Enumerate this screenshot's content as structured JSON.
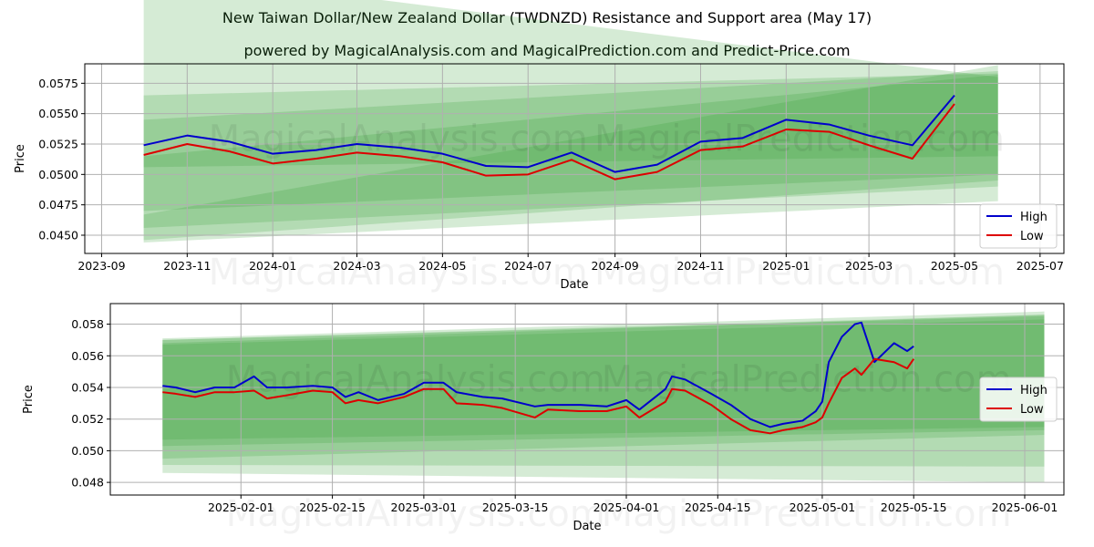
{
  "title": "New Taiwan Dollar/New Zealand Dollar (TWDNZD) Resistance and Support area (May 17)",
  "subtitle": "powered by MagicalAnalysis.com and MagicalPrediction.com and Predict-Price.com",
  "watermarks": [
    "MagicalAnalysis.com",
    "MagicalPrediction.com"
  ],
  "colors": {
    "high": "#0000cc",
    "low": "#dd0000",
    "band": "#2e9c2e",
    "grid": "#b0b0b0"
  },
  "chart_data": [
    {
      "type": "line",
      "xlabel": "Date",
      "ylabel": "Price",
      "grid": true,
      "legend": "bottom-right",
      "x_ticks": [
        "2023-09",
        "2023-11",
        "2024-01",
        "2024-03",
        "2024-05",
        "2024-07",
        "2024-09",
        "2024-11",
        "2025-01",
        "2025-03",
        "2025-05",
        "2025-07"
      ],
      "y_ticks": [
        "0.0450",
        "0.0475",
        "0.0500",
        "0.0525",
        "0.0550",
        "0.0575"
      ],
      "ylim": [
        0.0435,
        0.0591
      ],
      "x": [
        "2023-10",
        "2023-11",
        "2023-12",
        "2024-01",
        "2024-02",
        "2024-03",
        "2024-04",
        "2024-05",
        "2024-06",
        "2024-07",
        "2024-08",
        "2024-09",
        "2024-10",
        "2024-11",
        "2024-12",
        "2025-01",
        "2025-02",
        "2025-03",
        "2025-04",
        "2025-05"
      ],
      "series": [
        {
          "name": "High",
          "values": [
            0.0524,
            0.0532,
            0.0527,
            0.0517,
            0.052,
            0.0525,
            0.0522,
            0.0517,
            0.0507,
            0.0506,
            0.0518,
            0.0502,
            0.0508,
            0.0527,
            0.053,
            0.0545,
            0.0541,
            0.0532,
            0.0524,
            0.0565
          ]
        },
        {
          "name": "Low",
          "values": [
            0.0516,
            0.0525,
            0.0519,
            0.0509,
            0.0513,
            0.0518,
            0.0515,
            0.051,
            0.0499,
            0.05,
            0.0512,
            0.0496,
            0.0502,
            0.052,
            0.0523,
            0.0537,
            0.0535,
            0.0524,
            0.0513,
            0.0558
          ]
        }
      ],
      "support_resistance_bands": [
        {
          "start": [
            0.0506,
            0.0565
          ],
          "end": [
            0.0515,
            0.0583
          ]
        },
        {
          "start": [
            0.047,
            0.0545
          ],
          "end": [
            0.05,
            0.0585
          ]
        },
        {
          "start": [
            0.0456,
            0.0515
          ],
          "end": [
            0.049,
            0.0582
          ]
        },
        {
          "start": [
            0.0444,
            0.0467
          ],
          "end": [
            0.0478,
            0.059
          ]
        },
        {
          "start": [
            0.0446,
            0.0668
          ],
          "end": [
            0.0495,
            0.058
          ]
        }
      ]
    },
    {
      "type": "line",
      "xlabel": "Date",
      "ylabel": "Price",
      "grid": true,
      "legend": "center-right",
      "x_ticks": [
        "2025-02-01",
        "2025-02-15",
        "2025-03-01",
        "2025-03-15",
        "2025-04-01",
        "2025-04-15",
        "2025-05-01",
        "2025-05-15",
        "2025-06-01"
      ],
      "y_ticks": [
        "0.048",
        "0.050",
        "0.052",
        "0.054",
        "0.056",
        "0.058"
      ],
      "ylim": [
        0.0472,
        0.0593
      ],
      "x": [
        "2025-01-20",
        "2025-01-22",
        "2025-01-25",
        "2025-01-28",
        "2025-01-31",
        "2025-02-03",
        "2025-02-05",
        "2025-02-08",
        "2025-02-12",
        "2025-02-15",
        "2025-02-17",
        "2025-02-19",
        "2025-02-22",
        "2025-02-26",
        "2025-03-01",
        "2025-03-04",
        "2025-03-06",
        "2025-03-10",
        "2025-03-13",
        "2025-03-18",
        "2025-03-20",
        "2025-03-25",
        "2025-03-29",
        "2025-04-01",
        "2025-04-03",
        "2025-04-07",
        "2025-04-08",
        "2025-04-10",
        "2025-04-14",
        "2025-04-17",
        "2025-04-20",
        "2025-04-23",
        "2025-04-25",
        "2025-04-28",
        "2025-04-30",
        "2025-05-01",
        "2025-05-02",
        "2025-05-04",
        "2025-05-06",
        "2025-05-07",
        "2025-05-09",
        "2025-05-12",
        "2025-05-14",
        "2025-05-15"
      ],
      "series": [
        {
          "name": "High",
          "values": [
            0.0541,
            0.054,
            0.0537,
            0.054,
            0.054,
            0.0547,
            0.054,
            0.054,
            0.0541,
            0.054,
            0.0534,
            0.0537,
            0.0532,
            0.0536,
            0.0543,
            0.0543,
            0.0537,
            0.0534,
            0.0533,
            0.0528,
            0.0529,
            0.0529,
            0.0528,
            0.0532,
            0.0526,
            0.0539,
            0.0547,
            0.0545,
            0.0536,
            0.0529,
            0.052,
            0.0515,
            0.0517,
            0.0519,
            0.0525,
            0.0531,
            0.0556,
            0.0572,
            0.058,
            0.0581,
            0.0556,
            0.0568,
            0.0563,
            0.0566
          ]
        },
        {
          "name": "Low",
          "values": [
            0.0537,
            0.0536,
            0.0534,
            0.0537,
            0.0537,
            0.0538,
            0.0533,
            0.0535,
            0.0538,
            0.0537,
            0.053,
            0.0532,
            0.053,
            0.0534,
            0.0539,
            0.0539,
            0.053,
            0.0529,
            0.0527,
            0.0521,
            0.0526,
            0.0525,
            0.0525,
            0.0528,
            0.0521,
            0.0531,
            0.0539,
            0.0538,
            0.0529,
            0.052,
            0.0513,
            0.0511,
            0.0513,
            0.0515,
            0.0518,
            0.0521,
            0.053,
            0.0546,
            0.0552,
            0.0548,
            0.0558,
            0.0556,
            0.0552,
            0.0558
          ]
        }
      ],
      "support_resistance_bands": [
        {
          "start": [
            0.0507,
            0.0567
          ],
          "end": [
            0.0515,
            0.0583
          ]
        },
        {
          "start": [
            0.0503,
            0.057
          ],
          "end": [
            0.0513,
            0.0585
          ]
        },
        {
          "start": [
            0.0495,
            0.0568
          ],
          "end": [
            0.051,
            0.0586
          ]
        },
        {
          "start": [
            0.0491,
            0.057
          ],
          "end": [
            0.049,
            0.0586
          ]
        },
        {
          "start": [
            0.0486,
            0.0571
          ],
          "end": [
            0.048,
            0.0588
          ]
        }
      ]
    }
  ]
}
